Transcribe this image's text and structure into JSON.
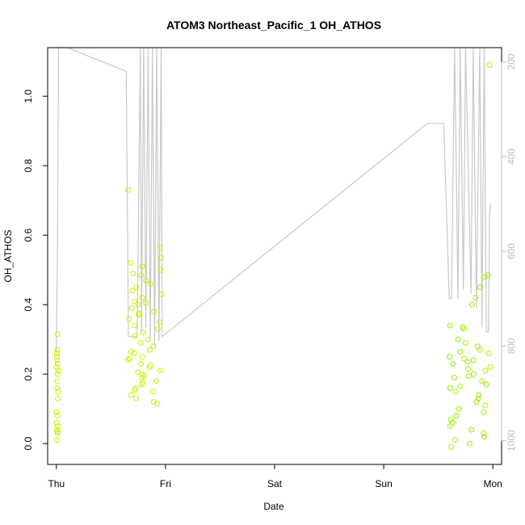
{
  "chart_data": {
    "type": "scatter",
    "title": "ATOM3 Northeast_Pacific_1 OH_ATHOS",
    "xlabel": "Date",
    "ylabel": "OH_ATHOS",
    "x_ticks": [
      "Thu",
      "Fri",
      "Sat",
      "Sun",
      "Mon"
    ],
    "y_ticks": [
      "0.0",
      "0.2",
      "0.4",
      "0.6",
      "0.8",
      "1.0"
    ],
    "y_right_ticks": [
      "200",
      "400",
      "600",
      "800",
      "1000"
    ],
    "xlim": [
      -0.08,
      4.08
    ],
    "ylim": [
      -0.06,
      1.14
    ],
    "y_right_lim": [
      170,
      1050
    ],
    "x_unit": "days from Thu 00:00",
    "marker_colors": [
      "#c6f000",
      "#a8f000",
      "#8ced00"
    ],
    "line_color": "#c8c8c8",
    "right_axis_color": "#bdbdbd",
    "scatter_groups": [
      {
        "x_range": [
          0.0,
          0.02
        ],
        "y_values": [
          0.315,
          0.27,
          0.26,
          0.25,
          0.24,
          0.23,
          0.22,
          0.21,
          0.2,
          0.18,
          0.16,
          0.15,
          0.13,
          0.09,
          0.08,
          0.06,
          0.05,
          0.04,
          0.035,
          0.03,
          0.01
        ]
      },
      {
        "x_range": [
          0.64,
          0.97
        ],
        "y_values": [
          0.73,
          0.565,
          0.535,
          0.52,
          0.51,
          0.5,
          0.49,
          0.485,
          0.47,
          0.46,
          0.45,
          0.44,
          0.43,
          0.42,
          0.41,
          0.405,
          0.4,
          0.39,
          0.38,
          0.375,
          0.37,
          0.36,
          0.35,
          0.34,
          0.33,
          0.32,
          0.31,
          0.3,
          0.29,
          0.28,
          0.27,
          0.265,
          0.26,
          0.25,
          0.245,
          0.24,
          0.23,
          0.225,
          0.22,
          0.21,
          0.205,
          0.2,
          0.195,
          0.19,
          0.18,
          0.175,
          0.17,
          0.16,
          0.155,
          0.15,
          0.14,
          0.13,
          0.12,
          0.115
        ]
      },
      {
        "x_range": [
          3.6,
          3.98
        ],
        "y_values": [
          1.09,
          0.485,
          0.48,
          0.45,
          0.42,
          0.4,
          0.34,
          0.335,
          0.33,
          0.3,
          0.29,
          0.28,
          0.27,
          0.265,
          0.26,
          0.25,
          0.245,
          0.24,
          0.235,
          0.23,
          0.22,
          0.215,
          0.21,
          0.2,
          0.195,
          0.19,
          0.18,
          0.17,
          0.165,
          0.16,
          0.15,
          0.14,
          0.13,
          0.12,
          0.11,
          0.1,
          0.09,
          0.08,
          0.07,
          0.06,
          0.05,
          0.04,
          0.03,
          0.02,
          0.01,
          0.0,
          -0.01
        ]
      }
    ],
    "pressure_line": {
      "x": [
        0.0,
        0.01,
        0.02,
        0.1,
        0.64,
        0.66,
        0.74,
        0.77,
        0.78,
        0.8,
        0.82,
        0.84,
        0.86,
        0.88,
        0.9,
        0.92,
        0.94,
        0.96,
        0.97,
        3.4,
        3.55,
        3.6,
        3.62,
        3.65,
        3.68,
        3.7,
        3.73,
        3.75,
        3.8,
        3.82,
        3.85,
        3.88,
        3.9,
        3.92,
        3.94,
        3.96,
        3.97,
        3.98
      ],
      "pressure": [
        810,
        580,
        170,
        170,
        220,
        780,
        780,
        160,
        770,
        160,
        760,
        160,
        790,
        160,
        800,
        160,
        790,
        160,
        780,
        330,
        330,
        700,
        700,
        160,
        700,
        160,
        680,
        160,
        690,
        160,
        720,
        160,
        760,
        170,
        770,
        770,
        520,
        500
      ]
    }
  }
}
